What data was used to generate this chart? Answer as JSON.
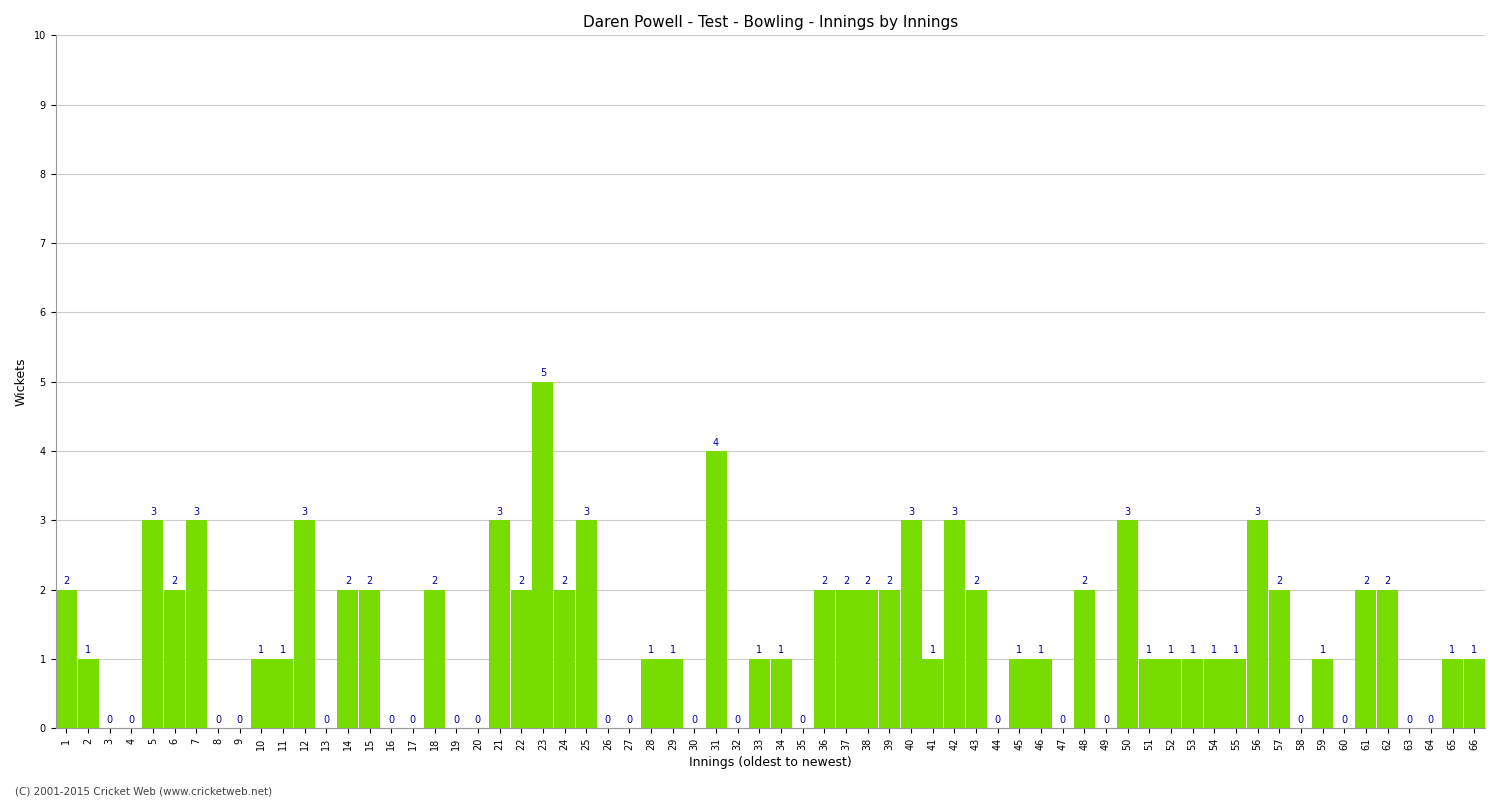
{
  "title": "Daren Powell - Test - Bowling - Innings by Innings",
  "xlabel": "Innings (oldest to newest)",
  "ylabel": "Wickets",
  "ylim": [
    0,
    10
  ],
  "yticks": [
    0,
    1,
    2,
    3,
    4,
    5,
    6,
    7,
    8,
    9,
    10
  ],
  "bar_color": "#77DD00",
  "label_color": "#0000AA",
  "background_color": "#FFFFFF",
  "grid_color": "#CCCCCC",
  "footer": "(C) 2001-2015 Cricket Web (www.cricketweb.net)",
  "innings_labels": [
    "1",
    "2",
    "3",
    "4",
    "5",
    "6",
    "7",
    "8",
    "9",
    "10",
    "11",
    "12",
    "13",
    "14",
    "15",
    "16",
    "17",
    "18",
    "19",
    "20",
    "21",
    "22",
    "23",
    "24",
    "25",
    "26",
    "27",
    "28",
    "29",
    "30",
    "31",
    "32",
    "33",
    "34",
    "35",
    "36",
    "37",
    "38",
    "39",
    "40",
    "41",
    "42",
    "43",
    "44",
    "45",
    "46",
    "47",
    "48",
    "49",
    "50",
    "51",
    "52",
    "53",
    "54",
    "55",
    "56",
    "57",
    "58",
    "59",
    "60",
    "61",
    "62",
    "63",
    "64",
    "65",
    "66"
  ],
  "wickets": [
    2,
    1,
    0,
    0,
    3,
    2,
    3,
    0,
    0,
    1,
    1,
    3,
    0,
    2,
    2,
    0,
    0,
    2,
    0,
    0,
    3,
    2,
    5,
    2,
    3,
    0,
    0,
    1,
    1,
    0,
    4,
    0,
    1,
    1,
    0,
    2,
    2,
    2,
    2,
    3,
    1,
    3,
    2,
    0,
    1,
    1,
    0,
    2,
    0,
    3,
    1,
    1,
    1,
    1,
    1,
    3,
    2,
    0,
    1,
    0,
    2,
    2,
    0,
    0,
    1,
    1
  ],
  "bar_width": 0.97,
  "label_fontsize": 7,
  "tick_fontsize": 7,
  "axis_label_fontsize": 9,
  "title_fontsize": 11
}
